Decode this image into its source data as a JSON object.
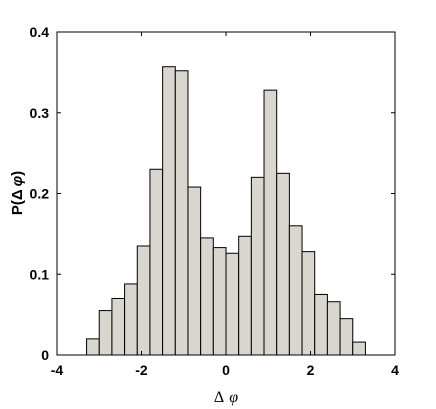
{
  "chart_data": {
    "type": "bar",
    "title": "",
    "xlabel": "Δ φ",
    "xlabel_parts": {
      "delta": "Δ",
      "phi": "φ"
    },
    "ylabel": "P(Δ φ)",
    "ylabel_parts": {
      "prefix": "P(",
      "delta": "Δ",
      "phi": "φ",
      "suffix": ")"
    },
    "xlim": [
      -4,
      4
    ],
    "ylim": [
      0,
      0.4
    ],
    "xticks": [
      -4,
      -2,
      0,
      2,
      4
    ],
    "xtick_labels": [
      "-4",
      "-2",
      "0",
      "2",
      "4"
    ],
    "yticks": [
      0,
      0.1,
      0.2,
      0.3,
      0.4
    ],
    "ytick_labels": [
      "0",
      "0.1",
      "0.2",
      "0.3",
      "0.4"
    ],
    "grid": false,
    "bar_color": "#d9d6cf",
    "bin_width": 0.3,
    "bin_centers": [
      -3.15,
      -2.85,
      -2.55,
      -2.25,
      -1.95,
      -1.65,
      -1.35,
      -1.05,
      -0.75,
      -0.45,
      -0.15,
      0.15,
      0.45,
      0.75,
      1.05,
      1.35,
      1.65,
      1.95,
      2.25,
      2.55,
      2.85,
      3.15
    ],
    "values": [
      0.02,
      0.055,
      0.07,
      0.088,
      0.135,
      0.23,
      0.357,
      0.352,
      0.208,
      0.145,
      0.133,
      0.126,
      0.147,
      0.22,
      0.328,
      0.225,
      0.16,
      0.128,
      0.075,
      0.066,
      0.045,
      0.016
    ]
  }
}
